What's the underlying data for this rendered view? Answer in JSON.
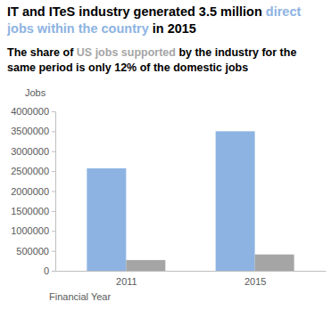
{
  "chart_data": {
    "type": "bar",
    "title": "IT and ITeS industry generated 3.5 million direct jobs within the country in 2015",
    "subtitle": "The share of US jobs supported by the industry for the same period is only 12% of the domestic jobs",
    "y_label": "Jobs",
    "x_label": "Financial Year",
    "categories": [
      "2011",
      "2015"
    ],
    "series": [
      {
        "name": "direct jobs within the country",
        "color": "#8db3e2",
        "values": [
          2570000,
          3500000
        ]
      },
      {
        "name": "US jobs supported",
        "color": "#a5a5a5",
        "values": [
          270000,
          410000
        ]
      }
    ],
    "ylim": [
      0,
      4000000
    ],
    "yticks": [
      0,
      500000,
      1000000,
      1500000,
      2000000,
      2500000,
      3000000,
      3500000,
      4000000
    ],
    "grid": false
  }
}
